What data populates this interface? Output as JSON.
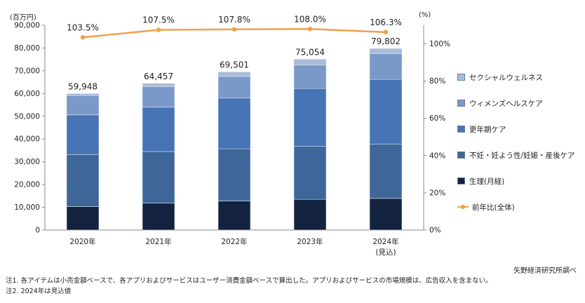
{
  "chart_data": {
    "type": "bar",
    "stacked": true,
    "categories": [
      "2020年",
      "2021年",
      "2022年",
      "2023年",
      "2024年"
    ],
    "category_sublabels": [
      "",
      "",
      "",
      "",
      "(見込)"
    ],
    "y_unit": "(百万円)",
    "y2_unit": "(%)",
    "ylim": [
      0,
      90000
    ],
    "yticks": [
      "0",
      "10,000",
      "20,000",
      "30,000",
      "40,000",
      "50,000",
      "60,000",
      "70,000",
      "80,000",
      "90,000"
    ],
    "y2lim": [
      0,
      110
    ],
    "y2ticks": [
      "0%",
      "20%",
      "40%",
      "60%",
      "80%",
      "100%"
    ],
    "series": [
      {
        "name": "生理(月経)",
        "color": "#13233f",
        "values": [
          10300,
          11800,
          12800,
          13500,
          13900
        ]
      },
      {
        "name": "不妊・妊よう性/妊娠・産後ケア",
        "color": "#3e6699",
        "values": [
          22900,
          22700,
          22900,
          23300,
          23800
        ]
      },
      {
        "name": "更年期ケア",
        "color": "#4674b4",
        "values": [
          17400,
          19500,
          22300,
          25400,
          28500
        ]
      },
      {
        "name": "ウィメンズヘルスケア",
        "color": "#7a98c8",
        "values": [
          8500,
          9000,
          9500,
          10300,
          11300
        ]
      },
      {
        "name": "セクシャルウェルネス",
        "color": "#a9bcd9",
        "values": [
          848,
          1457,
          2001,
          2554,
          2302
        ]
      }
    ],
    "totals": [
      "59,948",
      "64,457",
      "69,501",
      "75,054",
      "79,802"
    ],
    "line": {
      "name": "前年比(全体)",
      "color": "#f0a04a",
      "values": [
        103.5,
        107.5,
        107.8,
        108.0,
        106.3
      ],
      "labels": [
        "103.5%",
        "107.5%",
        "107.8%",
        "108.0%",
        "106.3%"
      ]
    }
  },
  "credit": "矢野経済研究所調べ",
  "notes": [
    "注1. 各アイテムは小売金額ベースで、各アプリおよびサービスはユーザー消費金額ベースで算出した。アプリおよびサービスの市場規模は、広告収入を含まない。",
    "注2. 2024年は見込値"
  ]
}
